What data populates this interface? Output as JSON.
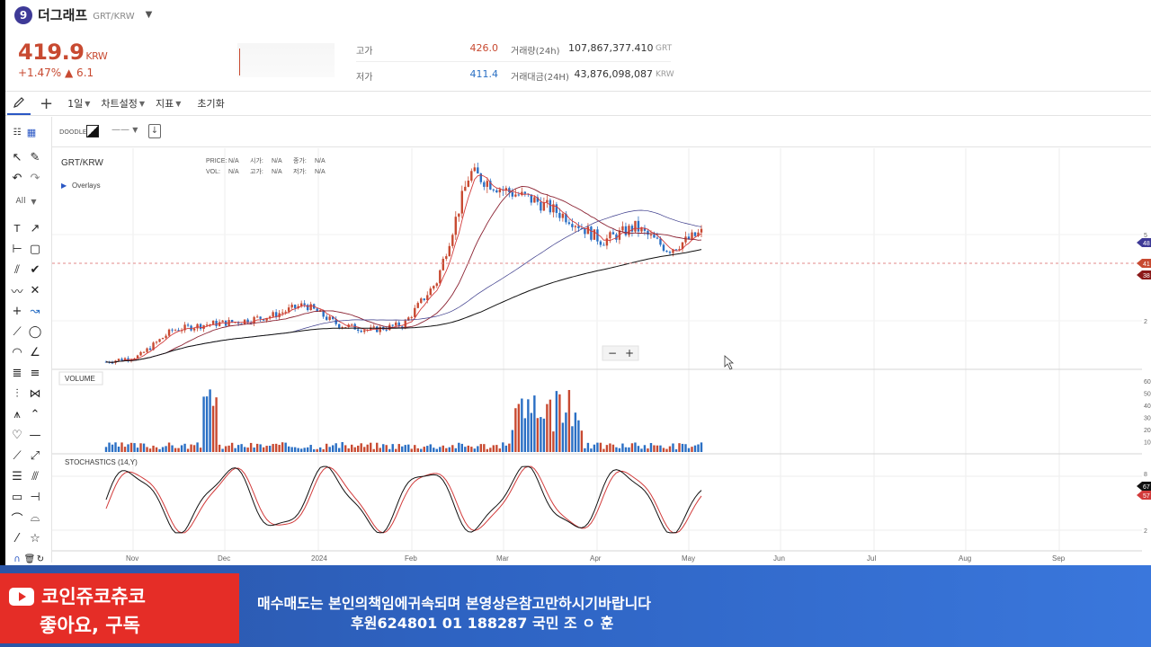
{
  "header": {
    "logo_letter": "9",
    "coin_name": "더그래프",
    "pair": "GRT/KRW",
    "price": "419.9",
    "price_unit": "KRW",
    "change_pct": "+1.47%",
    "change_abs": "▲ 6.1",
    "stats": {
      "high_label": "고가",
      "high_value": "426.0",
      "low_label": "저가",
      "low_value": "411.4",
      "vol_label": "거래량(24h)",
      "vol_value": "107,867,377.410",
      "vol_unit": "GRT",
      "amt_label": "거래대금(24H)",
      "amt_value": "43,876,098,087",
      "amt_unit": "KRW"
    }
  },
  "toolbar": {
    "interval": "1일",
    "chart_settings": "차트설정",
    "indicators": "지표",
    "reset": "초기화"
  },
  "chart_toolbar": {
    "doodle": "DOODLE",
    "line_style": "——"
  },
  "tools": {
    "filter": "All"
  },
  "chart": {
    "pair_label": "GRT/KRW",
    "overlays": "Overlays",
    "legend": {
      "price": "PRICE:",
      "open": "시가:",
      "close": "종가:",
      "vol": "VOL:",
      "high": "고가:",
      "low": "저가:",
      "na": "N/A"
    },
    "zoom_minus": "−",
    "zoom_plus": "+",
    "volume_label": "VOLUME",
    "stoch_label": "STOCHASTICS (14,Y)",
    "price_axis": [
      "5",
      "48",
      "41",
      "38",
      "2"
    ],
    "volume_axis": [
      "60",
      "50",
      "40",
      "30",
      "20",
      "10"
    ],
    "stoch_axis": [
      "8",
      "67",
      "57",
      "2"
    ],
    "x_axis": [
      "Nov",
      "Dec",
      "2024",
      "Feb",
      "Mar",
      "Apr",
      "May",
      "Jun",
      "Jul",
      "Aug",
      "Sep"
    ]
  },
  "chart_data": {
    "type": "line",
    "x": [
      "Oct-24",
      "Nov-01",
      "Nov-10",
      "Nov-20",
      "Dec-01",
      "Dec-15",
      "Jan-01",
      "Jan-15",
      "Feb-01",
      "Feb-15",
      "Mar-01",
      "Mar-08",
      "Mar-15",
      "Mar-25",
      "Apr-01",
      "Apr-10",
      "Apr-20",
      "May-01",
      "May-06"
    ],
    "series": [
      {
        "values": [
          150,
          160,
          205,
          215,
          220,
          230,
          250,
          215,
          205,
          215,
          290,
          480,
          450,
          430,
          400,
          360,
          385,
          345,
          375
        ]
      }
    ]
  },
  "banner": {
    "yt_line1": "코인쥬코츄코",
    "yt_line2": "좋아요,  구독",
    "line1": "매수매도는 본인의책임에귀속되며 본영상은참고만하시기바랍니다",
    "line2": "후원624801 01 188287 국민 조 ㅇ 훈"
  },
  "colors": {
    "up": "#c84a31",
    "down": "#2a6fc4",
    "accent": "#2a57c4",
    "banner_blue": "#2e63c2",
    "yt_red": "#e52d27"
  }
}
